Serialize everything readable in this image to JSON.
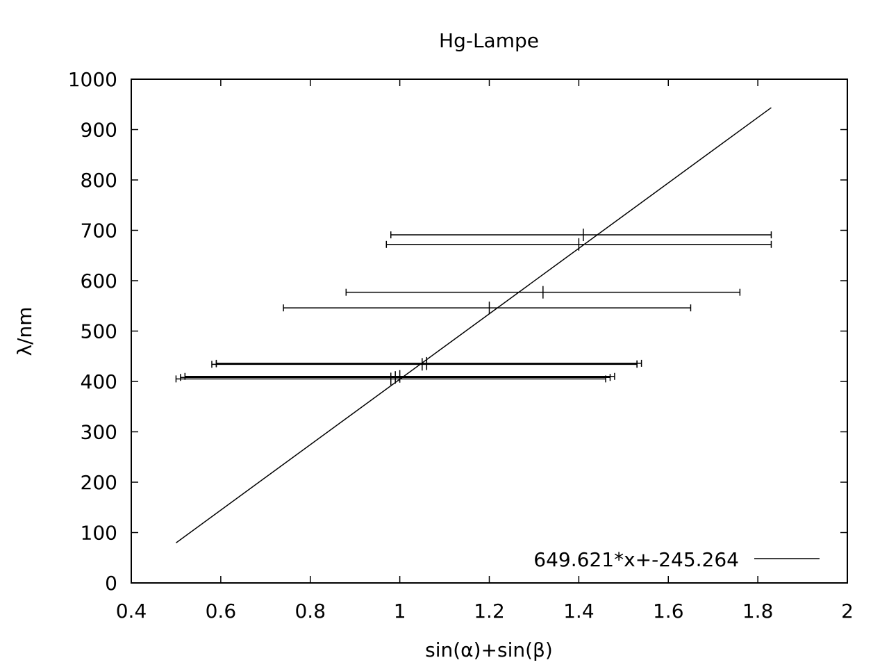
{
  "chart_data": {
    "type": "scatter",
    "title": "Hg-Lampe",
    "xlabel": "sin(α)+sin(β)",
    "ylabel": "λ/nm",
    "xlim": [
      0.4,
      2.0
    ],
    "ylim": [
      0,
      1000
    ],
    "x_ticks": [
      "0.4",
      "0.6",
      "0.8",
      "1",
      "1.2",
      "1.4",
      "1.6",
      "1.8",
      "2"
    ],
    "y_ticks": [
      "0",
      "100",
      "200",
      "300",
      "400",
      "500",
      "600",
      "700",
      "800",
      "900",
      "1000"
    ],
    "grid": false,
    "legend_position": "bottom-right",
    "series": [
      {
        "kind": "xerrorbars",
        "points": [
          {
            "x": 1.41,
            "y": 691,
            "xerr": [
              0.98,
              1.83
            ]
          },
          {
            "x": 1.4,
            "y": 672,
            "xerr": [
              0.97,
              1.83
            ]
          },
          {
            "x": 1.32,
            "y": 577,
            "xerr": [
              0.88,
              1.76
            ]
          },
          {
            "x": 1.2,
            "y": 546,
            "xerr": [
              0.74,
              1.65
            ]
          },
          {
            "x": 1.06,
            "y": 436,
            "xerr": [
              0.59,
              1.54
            ]
          },
          {
            "x": 1.06,
            "y": 435,
            "xerr": [
              0.59,
              1.53
            ]
          },
          {
            "x": 1.05,
            "y": 434,
            "xerr": [
              0.58,
              1.53
            ]
          },
          {
            "x": 1.0,
            "y": 410,
            "xerr": [
              0.52,
              1.48
            ]
          },
          {
            "x": 0.99,
            "y": 408,
            "xerr": [
              0.51,
              1.47
            ]
          },
          {
            "x": 0.98,
            "y": 405,
            "xerr": [
              0.5,
              1.46
            ]
          }
        ]
      },
      {
        "kind": "fit-line",
        "name": "649.621*x+-245.264",
        "slope": 649.621,
        "intercept": -245.264,
        "x_range": [
          0.5,
          1.83
        ]
      }
    ]
  }
}
